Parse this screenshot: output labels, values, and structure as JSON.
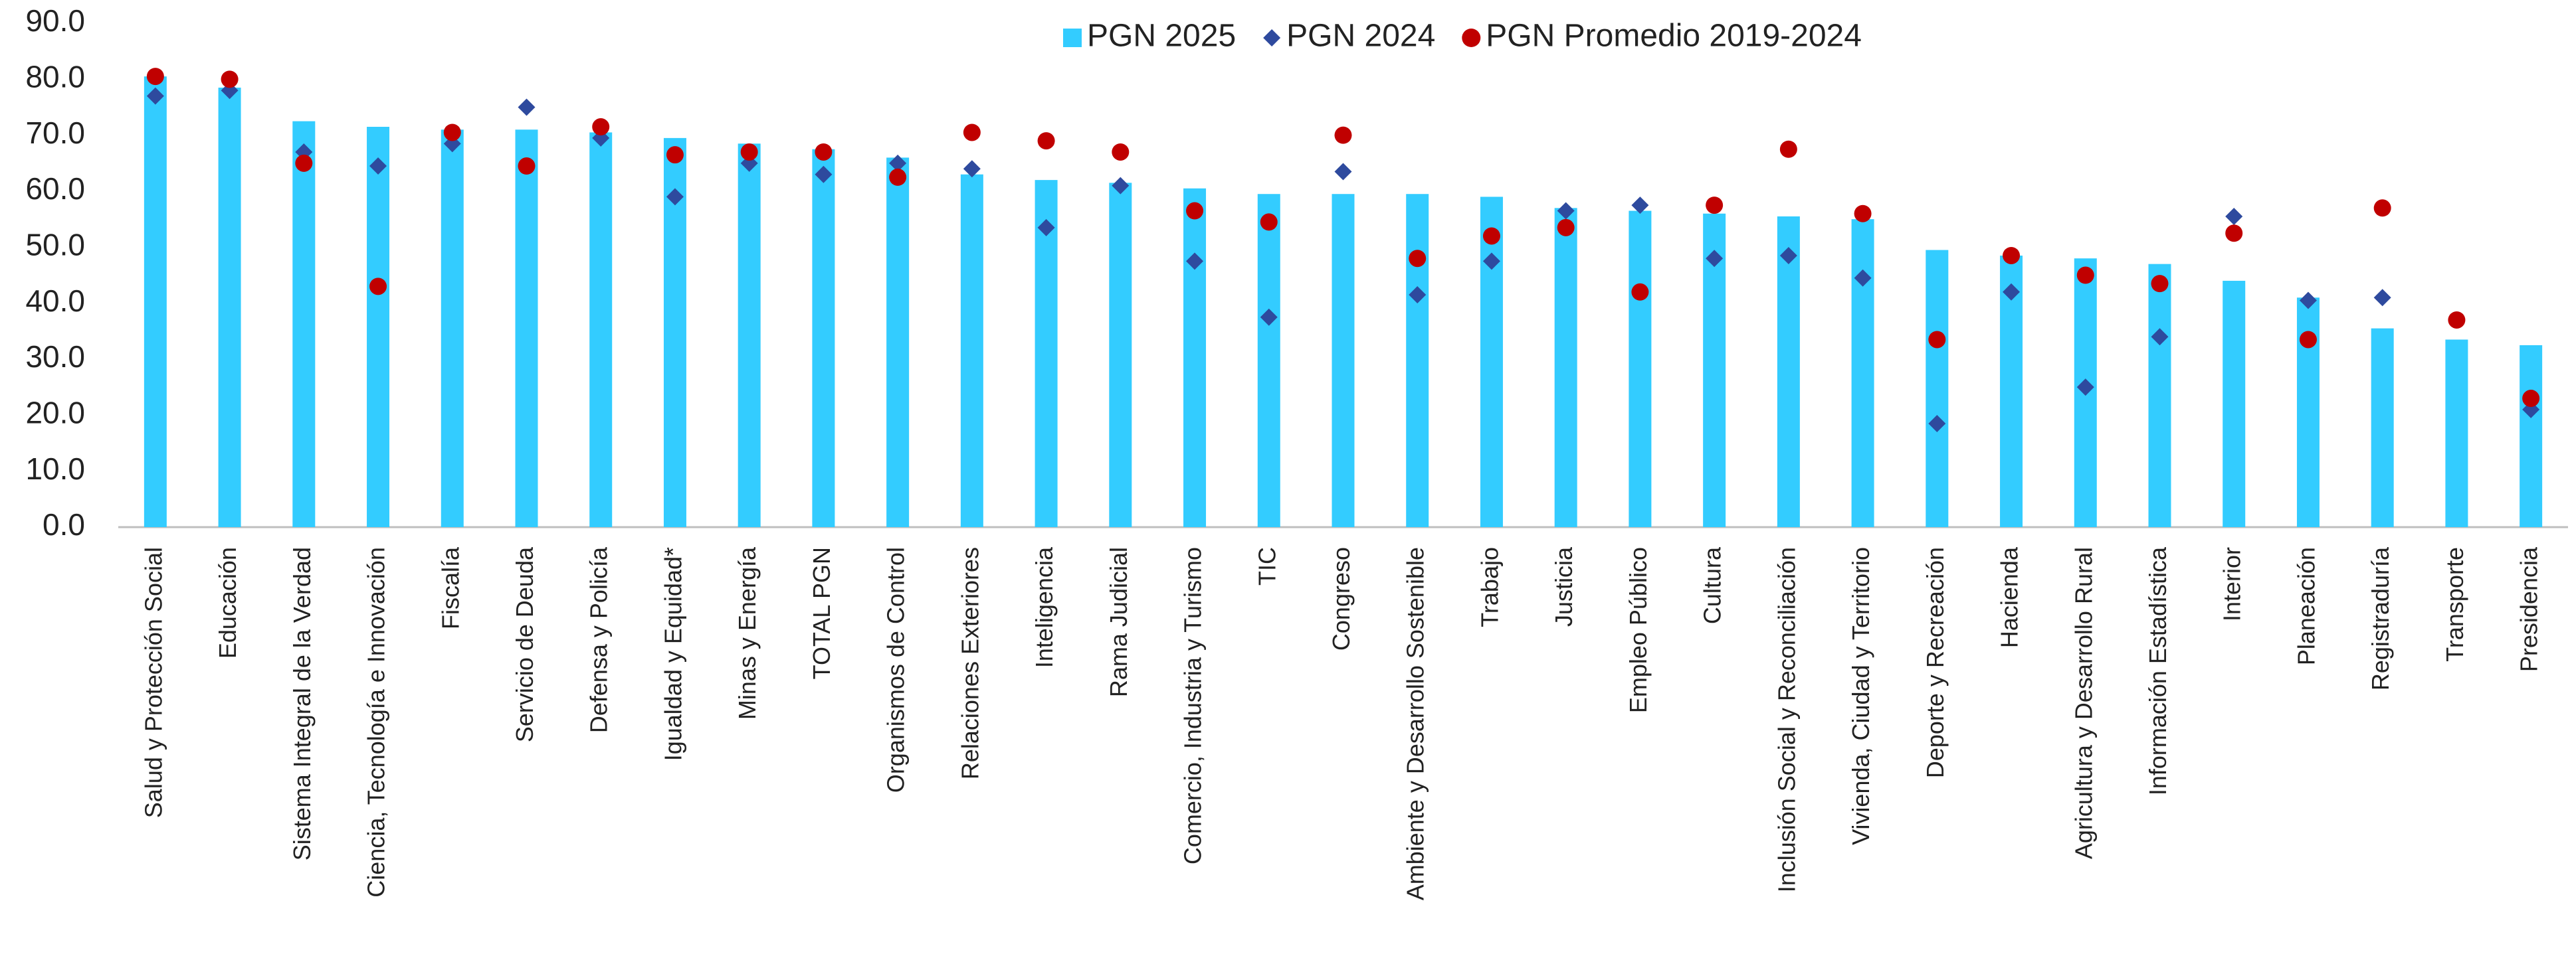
{
  "chart_data": {
    "type": "bar",
    "categories": [
      "Salud y Protección Social",
      "Educación",
      "Sistema Integral de la Verdad",
      "Ciencia, Tecnología e Innovación",
      "Fiscalía",
      "Servicio de Deuda",
      "Defensa y Policía",
      "Igualdad y Equidad*",
      "Minas y Energía",
      "TOTAL PGN",
      "Organismos de Control",
      "Relaciones Exteriores",
      "Inteligencia",
      "Rama Judicial",
      "Comercio, Industria y Turismo",
      "TIC",
      "Congreso",
      "Ambiente y Desarrollo Sostenible",
      "Trabajo",
      "Justicia",
      "Empleo Público",
      "Cultura",
      "Inclusión Social y Reconciliación",
      "Vivienda, Ciudad y Territorio",
      "Deporte y Recreación",
      "Hacienda",
      "Agricultura y Desarrollo Rural",
      "Información Estadística",
      "Interior",
      "Planeación",
      "Registraduría",
      "Transporte",
      "Presidencia"
    ],
    "series": [
      {
        "name": "PGN 2025",
        "type": "bar",
        "color": "#33ccff",
        "values": [
          80.5,
          78.5,
          72.5,
          71.5,
          71,
          71,
          70.5,
          69.5,
          68.5,
          67.5,
          66,
          63,
          62,
          61.5,
          60.5,
          59.5,
          59.5,
          59.5,
          59,
          57,
          56.5,
          56,
          55.5,
          55,
          49.5,
          48.5,
          48,
          47,
          44,
          41,
          35.5,
          33.5,
          32.5
        ]
      },
      {
        "name": "PGN 2024",
        "type": "diamond",
        "color": "#2e4a9e",
        "values": [
          77,
          78,
          67,
          64.5,
          68.5,
          75,
          69.5,
          59,
          65,
          63,
          65,
          64,
          53.5,
          61,
          47.5,
          37.5,
          63.5,
          41.5,
          47.5,
          56.5,
          57.5,
          48,
          48.5,
          44.5,
          18.5,
          42,
          25,
          34,
          55.5,
          40.5,
          41,
          37,
          21
        ]
      },
      {
        "name": "PGN Promedio 2019-2024",
        "type": "circle",
        "color": "#c00000",
        "values": [
          80.5,
          80,
          65,
          43,
          70.5,
          64.5,
          71.5,
          66.5,
          67,
          67,
          62.5,
          70.5,
          69,
          67,
          56.5,
          54.5,
          70,
          48,
          52,
          53.5,
          42,
          57.5,
          67.5,
          56,
          33.5,
          48.5,
          45,
          43.5,
          52.5,
          33.5,
          57,
          37,
          23
        ]
      }
    ],
    "ylim": [
      0,
      90
    ],
    "yticks": [
      {
        "value": 0,
        "label": "0.0"
      },
      {
        "value": 10,
        "label": "10.0"
      },
      {
        "value": 20,
        "label": "20.0"
      },
      {
        "value": 30,
        "label": "30.0"
      },
      {
        "value": 40,
        "label": "40.0"
      },
      {
        "value": 50,
        "label": "50.0"
      },
      {
        "value": 60,
        "label": "60.0"
      },
      {
        "value": 70,
        "label": "70.0"
      },
      {
        "value": 80,
        "label": "80.0"
      },
      {
        "value": 90,
        "label": "90.0"
      }
    ],
    "grid": false
  }
}
